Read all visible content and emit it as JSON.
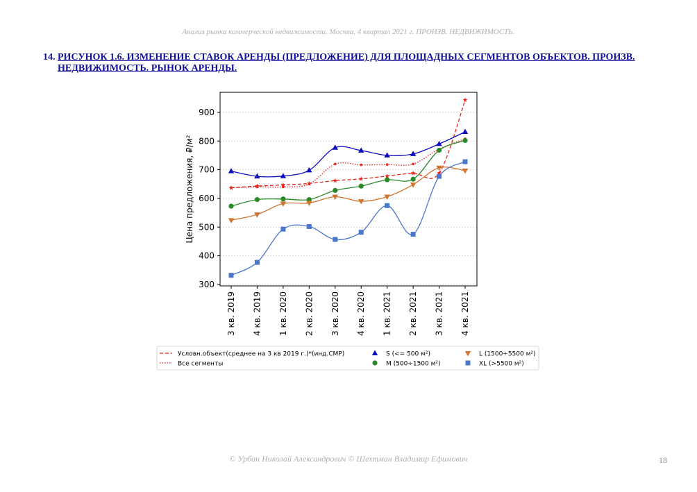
{
  "header": "Анализ рынка коммерческой недвижимости.   Москва,  4 квартал 2021 г.   ПРОИЗВ. НЕДВИЖИМОСТЬ.",
  "figure": {
    "number": "14.",
    "title": "РИСУНОК 1.6. ИЗМЕНЕНИЕ СТАВОК АРЕНДЫ (ПРЕДЛОЖЕНИЕ) ДЛЯ ПЛОЩАДНЫХ СЕГМЕНТОВ ОБЪЕКТОВ. ПРОИЗВ. НЕДВИЖИМОСТЬ. РЫНОК АРЕНДЫ."
  },
  "footer": "© Урбан Николай Александрович   © Шехтман Владимир Ефимович",
  "page_number": "18",
  "chart_data": {
    "type": "line",
    "ylabel": "Цена предложения, ₽/м²",
    "ylim": [
      295,
      970
    ],
    "yticks": [
      300,
      400,
      500,
      600,
      700,
      800,
      900
    ],
    "categories": [
      "3 кв. 2019",
      "4 кв. 2019",
      "1 кв. 2020",
      "2 кв. 2020",
      "3 кв. 2020",
      "4 кв. 2020",
      "1 кв. 2021",
      "2 кв. 2021",
      "3 кв. 2021",
      "4 кв. 2021"
    ],
    "grid": "horizontal",
    "legend_position": "bottom",
    "series": [
      {
        "name": "Условн.объект(среднее на 3 кв 2019 г.)*(инд.СМР)",
        "color": "#e8241c",
        "dash": "dashed",
        "marker": "star",
        "values": [
          637,
          643,
          647,
          652,
          662,
          668,
          678,
          688,
          688,
          943
        ]
      },
      {
        "name": "Все сегменты",
        "color": "#e8241c",
        "dash": "dotted",
        "marker": "dot",
        "values": [
          637,
          640,
          640,
          650,
          720,
          717,
          718,
          720,
          772,
          808
        ]
      },
      {
        "name": "S (<= 500 м²)",
        "color": "#0d0dbf",
        "dash": "solid",
        "marker": "triangle-up",
        "values": [
          695,
          677,
          678,
          698,
          777,
          767,
          750,
          755,
          790,
          832
        ]
      },
      {
        "name": "M (500÷1500 м²)",
        "color": "#2a8a2a",
        "dash": "solid",
        "marker": "circle",
        "values": [
          573,
          596,
          598,
          596,
          628,
          643,
          665,
          667,
          768,
          802
        ]
      },
      {
        "name": "L (1500÷5500 м²)",
        "color": "#d0742e",
        "dash": "solid",
        "marker": "triangle-down",
        "values": [
          524,
          544,
          582,
          584,
          606,
          590,
          606,
          648,
          707,
          697
        ]
      },
      {
        "name": "XL (>5500 м²)",
        "color": "#4a76cc",
        "dash": "solid",
        "marker": "square",
        "values": [
          332,
          377,
          493,
          502,
          457,
          482,
          575,
          475,
          677,
          728
        ]
      }
    ]
  }
}
